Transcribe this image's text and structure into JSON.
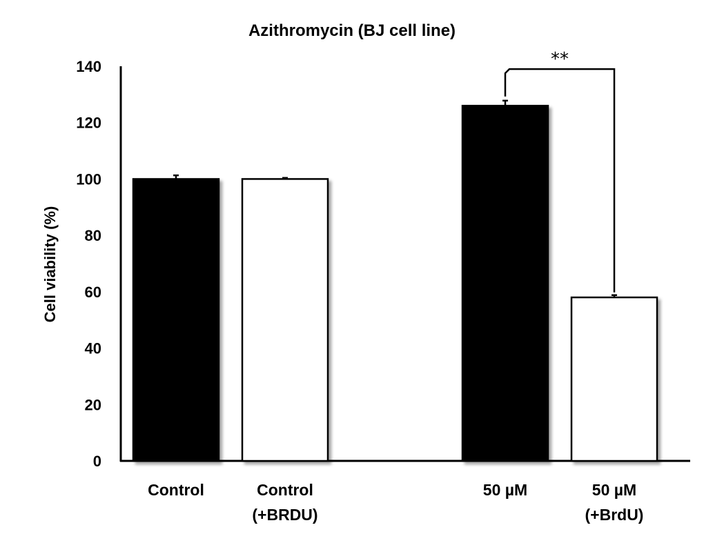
{
  "chart_data": {
    "type": "bar",
    "title": "Azithromycin (BJ cell line)",
    "xlabel": "",
    "ylabel": "Cell viability (%)",
    "ylim": [
      0,
      140
    ],
    "yticks": [
      0,
      20,
      40,
      60,
      80,
      100,
      120,
      140
    ],
    "categories": [
      {
        "line1": "Control",
        "line2": ""
      },
      {
        "line1": "Control",
        "line2": "(+BRDU)"
      },
      {
        "line1": "50 µM",
        "line2": ""
      },
      {
        "line1": "50 µM",
        "line2": "(+BrdU)"
      }
    ],
    "bars": [
      {
        "value": 100,
        "error": 1.3,
        "fill": "#000000"
      },
      {
        "value": 100,
        "error": 0.4,
        "fill": "#ffffff"
      },
      {
        "value": 126,
        "error": 1.8,
        "fill": "#000000"
      },
      {
        "value": 58,
        "error": 0.8,
        "fill": "#ffffff"
      }
    ],
    "annotations": [
      {
        "text": "**",
        "from_bar": 2,
        "to_bar": 3,
        "level": 139
      }
    ],
    "grid": false,
    "legend": "none"
  }
}
